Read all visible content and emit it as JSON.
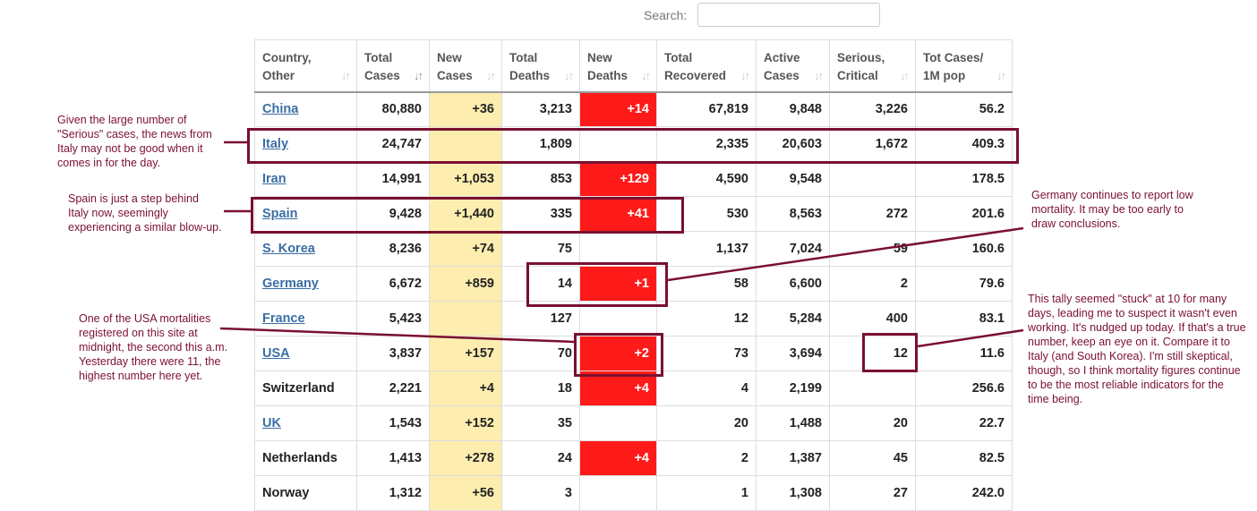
{
  "search": {
    "label": "Search:",
    "value": ""
  },
  "columns": [
    "Country,\nOther",
    "Total\nCases",
    "New\nCases",
    "Total\nDeaths",
    "New\nDeaths",
    "Total\nRecovered",
    "Active\nCases",
    "Serious,\nCritical",
    "Tot Cases/\n1M pop"
  ],
  "rows": [
    {
      "country": "China",
      "link": true,
      "total_cases": "80,880",
      "new_cases": "+36",
      "total_deaths": "3,213",
      "new_deaths": "+14",
      "total_recovered": "67,819",
      "active_cases": "9,848",
      "serious": "3,226",
      "per_million": "56.2"
    },
    {
      "country": "Italy",
      "link": true,
      "total_cases": "24,747",
      "new_cases": "",
      "total_deaths": "1,809",
      "new_deaths": "",
      "total_recovered": "2,335",
      "active_cases": "20,603",
      "serious": "1,672",
      "per_million": "409.3"
    },
    {
      "country": "Iran",
      "link": true,
      "total_cases": "14,991",
      "new_cases": "+1,053",
      "total_deaths": "853",
      "new_deaths": "+129",
      "total_recovered": "4,590",
      "active_cases": "9,548",
      "serious": "",
      "per_million": "178.5"
    },
    {
      "country": "Spain",
      "link": true,
      "total_cases": "9,428",
      "new_cases": "+1,440",
      "total_deaths": "335",
      "new_deaths": "+41",
      "total_recovered": "530",
      "active_cases": "8,563",
      "serious": "272",
      "per_million": "201.6"
    },
    {
      "country": "S. Korea",
      "link": true,
      "total_cases": "8,236",
      "new_cases": "+74",
      "total_deaths": "75",
      "new_deaths": "",
      "total_recovered": "1,137",
      "active_cases": "7,024",
      "serious": "59",
      "per_million": "160.6"
    },
    {
      "country": "Germany",
      "link": true,
      "total_cases": "6,672",
      "new_cases": "+859",
      "total_deaths": "14",
      "new_deaths": "+1",
      "total_recovered": "58",
      "active_cases": "6,600",
      "serious": "2",
      "per_million": "79.6"
    },
    {
      "country": "France",
      "link": true,
      "total_cases": "5,423",
      "new_cases": "",
      "total_deaths": "127",
      "new_deaths": "",
      "total_recovered": "12",
      "active_cases": "5,284",
      "serious": "400",
      "per_million": "83.1"
    },
    {
      "country": "USA",
      "link": true,
      "total_cases": "3,837",
      "new_cases": "+157",
      "total_deaths": "70",
      "new_deaths": "+2",
      "total_recovered": "73",
      "active_cases": "3,694",
      "serious": "12",
      "per_million": "11.6"
    },
    {
      "country": "Switzerland",
      "link": false,
      "total_cases": "2,221",
      "new_cases": "+4",
      "total_deaths": "18",
      "new_deaths": "+4",
      "total_recovered": "4",
      "active_cases": "2,199",
      "serious": "",
      "per_million": "256.6"
    },
    {
      "country": "UK",
      "link": true,
      "total_cases": "1,543",
      "new_cases": "+152",
      "total_deaths": "35",
      "new_deaths": "",
      "total_recovered": "20",
      "active_cases": "1,488",
      "serious": "20",
      "per_million": "22.7"
    },
    {
      "country": "Netherlands",
      "link": false,
      "total_cases": "1,413",
      "new_cases": "+278",
      "total_deaths": "24",
      "new_deaths": "+4",
      "total_recovered": "2",
      "active_cases": "1,387",
      "serious": "45",
      "per_million": "82.5"
    },
    {
      "country": "Norway",
      "link": false,
      "total_cases": "1,312",
      "new_cases": "+56",
      "total_deaths": "3",
      "new_deaths": "",
      "total_recovered": "1",
      "active_cases": "1,308",
      "serious": "27",
      "per_million": "242.0"
    }
  ],
  "annotations": {
    "italy": "Given the large number of \"Serious\" cases, the news from Italy may not be good when it comes in for the day.",
    "spain": "Spain is just a step behind Italy now, seemingly experiencing a similar blow-up.",
    "germany": "Germany continues to report low mortality.  It may be too early to draw conclusions.",
    "usa": "One of the USA mortalities registered on this site at midnight, the second this a.m. Yesterday there were 11, the highest number here yet.",
    "serious": "This tally seemed \"stuck\" at 10 for many days, leading me to suspect it wasn't even working.  It's nudged up today.  If that's a true number, keep an eye on it.  Compare it to Italy (and South Korea).  I'm still skeptical, though, so I think mortality figures continue to be the most reliable indicators for the time being."
  },
  "colors": {
    "annotation": "#7a1030",
    "new_cases_bg": "#fdeeb0",
    "new_deaths_bg": "#ff1a1a",
    "link": "#3a6ea5"
  }
}
